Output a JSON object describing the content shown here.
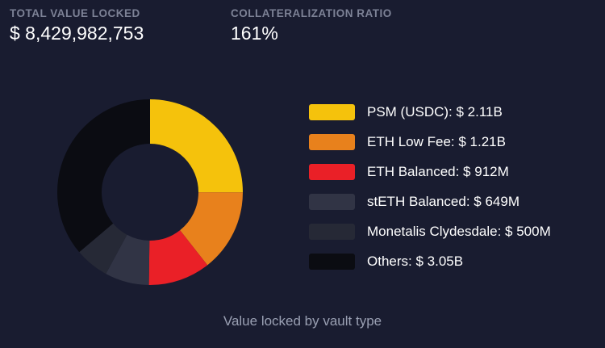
{
  "theme": {
    "background": "#191c30",
    "text_primary": "#ffffff",
    "text_muted": "#7d8296",
    "caption_color": "#9aa0b3"
  },
  "header": {
    "stats": [
      {
        "label": "TOTAL VALUE LOCKED",
        "value": "$ 8,429,982,753"
      },
      {
        "label": "COLLATERALIZATION RATIO",
        "value": "161%"
      }
    ]
  },
  "chart_data": {
    "type": "pie",
    "donut": true,
    "title": "Value locked by vault type",
    "legend_position": "right",
    "start_angle_deg": -90,
    "direction": "clockwise",
    "total_display": "$ 8,429,982,753",
    "series": [
      {
        "id": "psm-usdc",
        "name": "PSM (USDC)",
        "value_musd": 2110,
        "display": "$ 2.11B",
        "label": "PSM (USDC): $ 2.11B",
        "color": "#f5c20c"
      },
      {
        "id": "eth-low-fee",
        "name": "ETH Low Fee",
        "value_musd": 1210,
        "display": "$ 1.21B",
        "label": "ETH Low Fee: $ 1.21B",
        "color": "#e8811c"
      },
      {
        "id": "eth-balanced",
        "name": "ETH Balanced",
        "value_musd": 912,
        "display": "$ 912M",
        "label": "ETH Balanced: $ 912M",
        "color": "#ea2027"
      },
      {
        "id": "steth-balanced",
        "name": "stETH Balanced",
        "value_musd": 649,
        "display": "$ 649M",
        "label": "stETH Balanced: $ 649M",
        "color": "#313445"
      },
      {
        "id": "monetalis-clydesdale",
        "name": "Monetalis Clydesdale",
        "value_musd": 500,
        "display": "$ 500M",
        "label": "Monetalis Clydesdale: $ 500M",
        "color": "#262936"
      },
      {
        "id": "others",
        "name": "Others",
        "value_musd": 3050,
        "display": "$ 3.05B",
        "label": "Others: $ 3.05B",
        "color": "#0b0c12"
      }
    ]
  }
}
